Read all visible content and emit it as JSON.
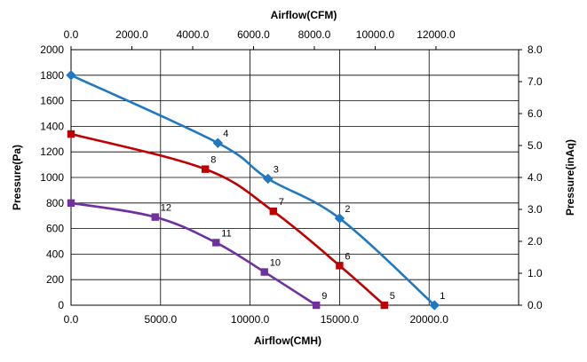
{
  "chart_data": {
    "type": "line",
    "xlabel": "Airflow(CMH)",
    "x2label": "Airflow(CFM)",
    "ylabel": "Pressure(Pa)",
    "y2label": "Pressure(inAq)",
    "xlim": [
      0,
      25000
    ],
    "x2lim": [
      0,
      14717
    ],
    "ylim": [
      0,
      2000
    ],
    "y2lim": [
      0,
      8.0
    ],
    "x_ticks": [
      "0.0",
      "5000.0",
      "10000.0",
      "15000.0",
      "20000.0"
    ],
    "x2_ticks": [
      "0.0",
      "2000.0",
      "4000.0",
      "6000.0",
      "8000.0",
      "10000.0",
      "12000.0"
    ],
    "y_ticks": [
      "0",
      "200",
      "400",
      "600",
      "800",
      "1000",
      "1200",
      "1400",
      "1600",
      "1800",
      "2000"
    ],
    "y2_ticks": [
      "0.0",
      "1.0",
      "2.0",
      "3.0",
      "4.0",
      "5.0",
      "6.0",
      "7.0",
      "8.0"
    ],
    "grid": true,
    "series": [
      {
        "color": "#1f78c1",
        "marker": "diamond",
        "points": [
          {
            "x": 0,
            "y": 1800,
            "label": ""
          },
          {
            "x": 8200,
            "y": 1270,
            "label": "4"
          },
          {
            "x": 11000,
            "y": 990,
            "label": "3"
          },
          {
            "x": 15000,
            "y": 680,
            "label": "2"
          },
          {
            "x": 20300,
            "y": 0,
            "label": "1"
          }
        ]
      },
      {
        "color": "#c00000",
        "marker": "square",
        "points": [
          {
            "x": 0,
            "y": 1340,
            "label": ""
          },
          {
            "x": 7500,
            "y": 1065,
            "label": "8"
          },
          {
            "x": 11300,
            "y": 735,
            "label": "7"
          },
          {
            "x": 15000,
            "y": 310,
            "label": "6"
          },
          {
            "x": 17500,
            "y": 0,
            "label": "5"
          }
        ]
      },
      {
        "color": "#7030a0",
        "marker": "square",
        "points": [
          {
            "x": 0,
            "y": 800,
            "label": ""
          },
          {
            "x": 4700,
            "y": 690,
            "label": "12"
          },
          {
            "x": 8100,
            "y": 490,
            "label": "11"
          },
          {
            "x": 10800,
            "y": 260,
            "label": "10"
          },
          {
            "x": 13700,
            "y": 0,
            "label": "9"
          }
        ]
      }
    ]
  }
}
